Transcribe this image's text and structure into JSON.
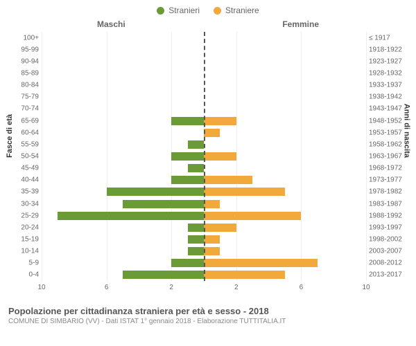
{
  "legend": {
    "male": {
      "label": "Stranieri",
      "color": "#6b9b37"
    },
    "female": {
      "label": "Straniere",
      "color": "#f2a93b"
    }
  },
  "columns": {
    "left": "Maschi",
    "right": "Femmine"
  },
  "y_axis_left": "Fasce di età",
  "y_axis_right": "Anni di nascita",
  "pyramid": {
    "x_max": 10,
    "x_ticks_left": [
      10,
      6,
      2
    ],
    "x_ticks_right": [
      2,
      6,
      10
    ],
    "center_line_color": "#555555",
    "grid_color": "#eeeeee",
    "background_color": "#ffffff",
    "bar_height_ratio": 0.7,
    "label_fontsize": 10,
    "rows": [
      {
        "age": "100+",
        "year": "≤ 1917",
        "m": 0,
        "f": 0
      },
      {
        "age": "95-99",
        "year": "1918-1922",
        "m": 0,
        "f": 0
      },
      {
        "age": "90-94",
        "year": "1923-1927",
        "m": 0,
        "f": 0
      },
      {
        "age": "85-89",
        "year": "1928-1932",
        "m": 0,
        "f": 0
      },
      {
        "age": "80-84",
        "year": "1933-1937",
        "m": 0,
        "f": 0
      },
      {
        "age": "75-79",
        "year": "1938-1942",
        "m": 0,
        "f": 0
      },
      {
        "age": "70-74",
        "year": "1943-1947",
        "m": 0,
        "f": 0
      },
      {
        "age": "65-69",
        "year": "1948-1952",
        "m": 2,
        "f": 2
      },
      {
        "age": "60-64",
        "year": "1953-1957",
        "m": 0,
        "f": 1
      },
      {
        "age": "55-59",
        "year": "1958-1962",
        "m": 1,
        "f": 0
      },
      {
        "age": "50-54",
        "year": "1963-1967",
        "m": 2,
        "f": 2
      },
      {
        "age": "45-49",
        "year": "1968-1972",
        "m": 1,
        "f": 0
      },
      {
        "age": "40-44",
        "year": "1973-1977",
        "m": 2,
        "f": 3
      },
      {
        "age": "35-39",
        "year": "1978-1982",
        "m": 6,
        "f": 5
      },
      {
        "age": "30-34",
        "year": "1983-1987",
        "m": 5,
        "f": 1
      },
      {
        "age": "25-29",
        "year": "1988-1992",
        "m": 9,
        "f": 6
      },
      {
        "age": "20-24",
        "year": "1993-1997",
        "m": 1,
        "f": 2
      },
      {
        "age": "15-19",
        "year": "1998-2002",
        "m": 1,
        "f": 1
      },
      {
        "age": "10-14",
        "year": "2003-2007",
        "m": 1,
        "f": 1
      },
      {
        "age": "5-9",
        "year": "2008-2012",
        "m": 2,
        "f": 7
      },
      {
        "age": "0-4",
        "year": "2013-2017",
        "m": 5,
        "f": 5
      }
    ]
  },
  "footer": {
    "title": "Popolazione per cittadinanza straniera per età e sesso - 2018",
    "subtitle": "COMUNE DI SIMBARIO (VV) - Dati ISTAT 1° gennaio 2018 - Elaborazione TUTTITALIA.IT"
  }
}
